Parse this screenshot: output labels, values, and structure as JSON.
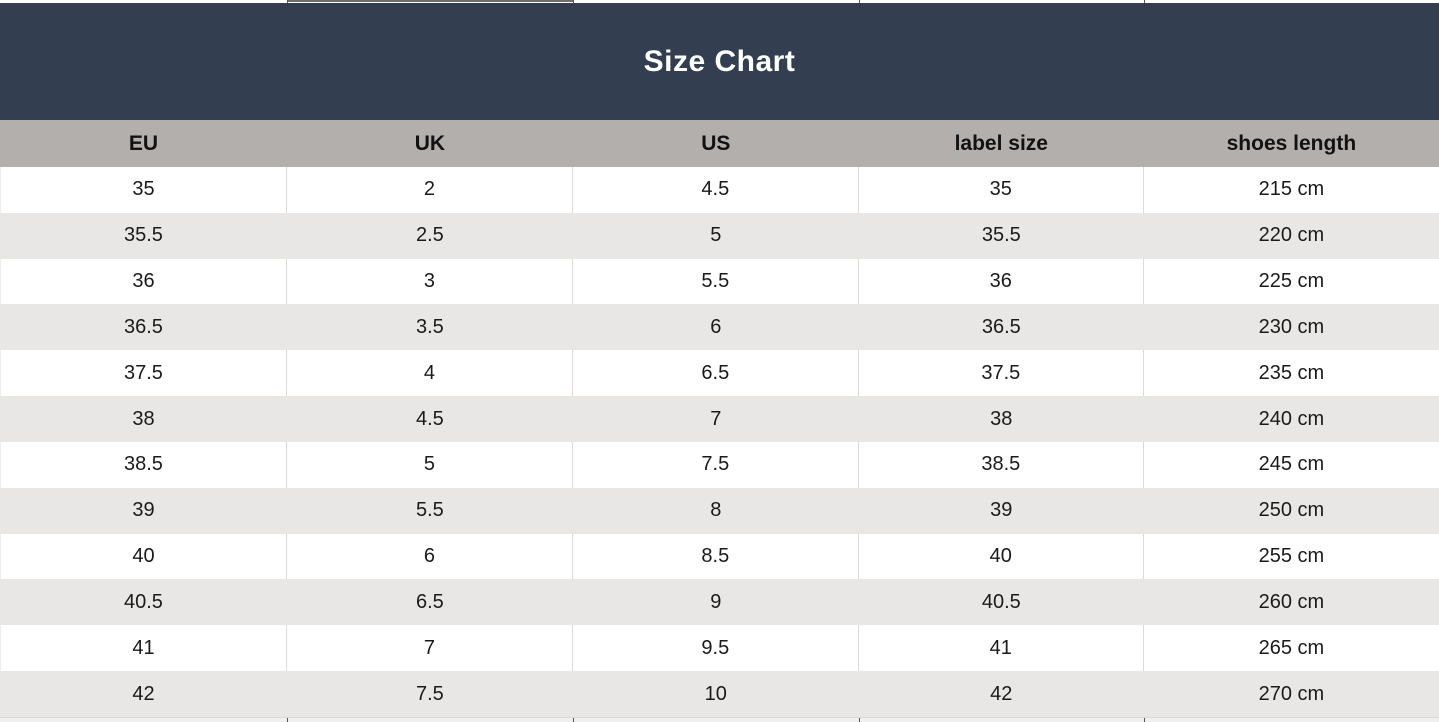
{
  "title": "Size Chart",
  "colors": {
    "title_band_bg": "#333F50",
    "title_text": "#FFFFFF",
    "column_header_bg": "#B2AFAC",
    "row_alt_bg": "#E9E7E6",
    "row_bg": "#FFFFFF",
    "text": "#1A1A1A"
  },
  "chart_data": {
    "type": "table",
    "title": "Size Chart",
    "columns": [
      "EU",
      "UK",
      "US",
      "label size",
      "shoes length"
    ],
    "rows": [
      [
        "35",
        "2",
        "4.5",
        "35",
        "215 cm"
      ],
      [
        "35.5",
        "2.5",
        "5",
        "35.5",
        "220 cm"
      ],
      [
        "36",
        "3",
        "5.5",
        "36",
        "225 cm"
      ],
      [
        "36.5",
        "3.5",
        "6",
        "36.5",
        "230 cm"
      ],
      [
        "37.5",
        "4",
        "6.5",
        "37.5",
        "235 cm"
      ],
      [
        "38",
        "4.5",
        "7",
        "38",
        "240 cm"
      ],
      [
        "38.5",
        "5",
        "7.5",
        "38.5",
        "245 cm"
      ],
      [
        "39",
        "5.5",
        "8",
        "39",
        "250 cm"
      ],
      [
        "40",
        "6",
        "8.5",
        "40",
        "255 cm"
      ],
      [
        "40.5",
        "6.5",
        "9",
        "40.5",
        "260 cm"
      ],
      [
        "41",
        "7",
        "9.5",
        "41",
        "265 cm"
      ],
      [
        "42",
        "7.5",
        "10",
        "42",
        "270 cm"
      ]
    ],
    "layout": {
      "striped_rows": true,
      "first_data_row_style": "white",
      "header_style": "gray-band",
      "title_style": "dark-slate-band"
    }
  }
}
